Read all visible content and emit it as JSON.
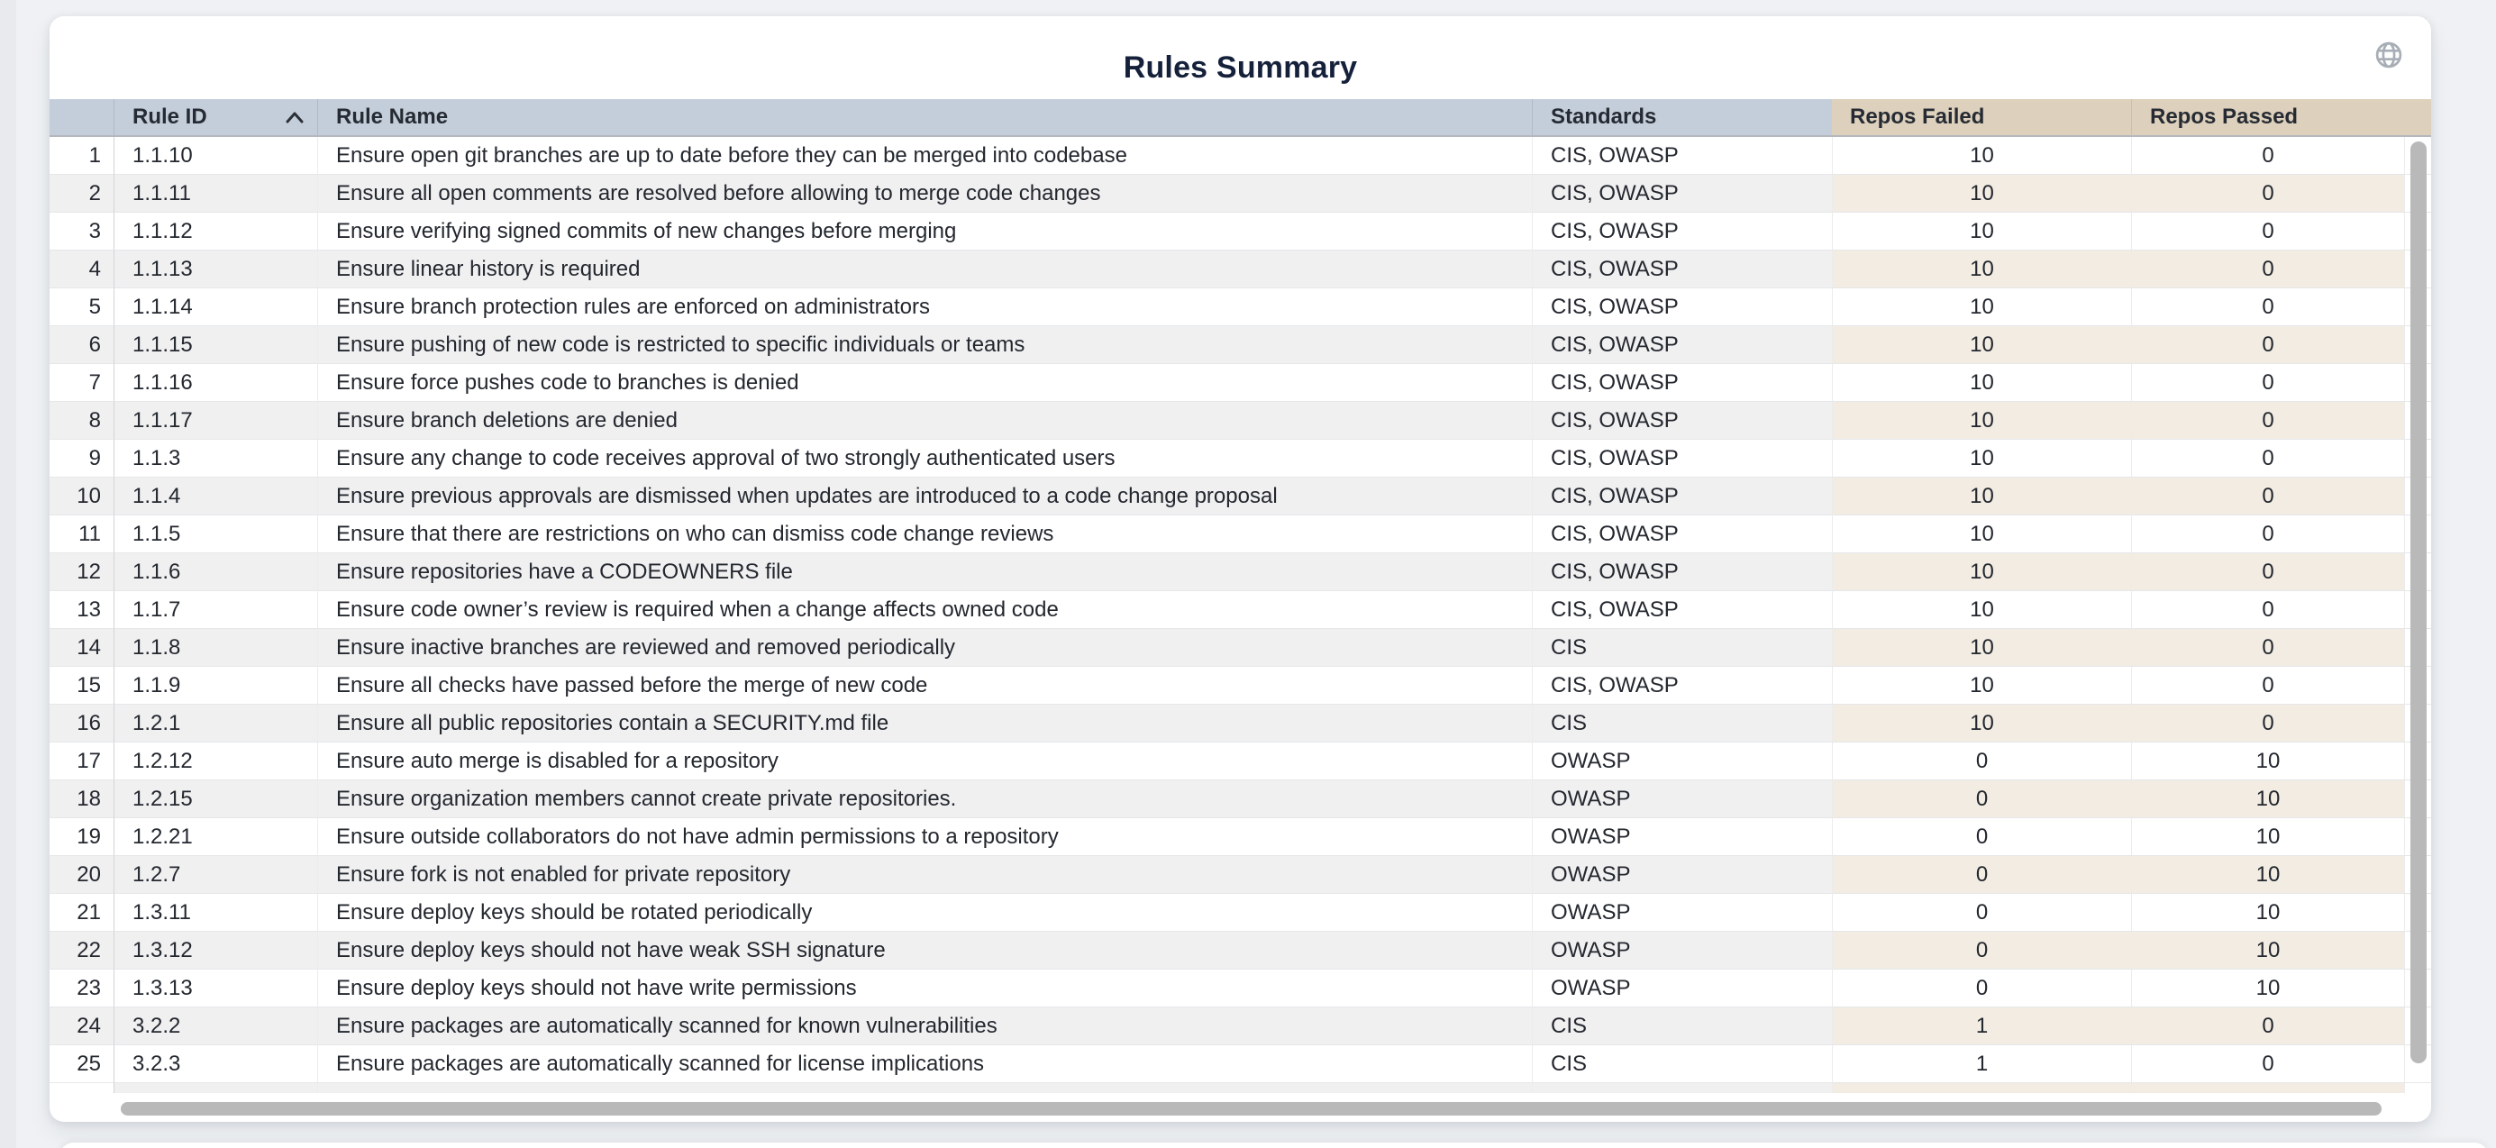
{
  "page": {
    "title": "Rules Summary"
  },
  "colors": {
    "page_background": "#eff1f4",
    "card_background": "#ffffff",
    "header_blue": "#c4cedb",
    "header_tan": "#ddd0bc",
    "row_alt_gray": "#f0f0f1",
    "row_alt_tan": "#f2ece3",
    "title_text": "#15213b",
    "body_text": "#23272e",
    "scrollbar_thumb": "#b9b9b9",
    "globe_icon": "#a7aeb6"
  },
  "table": {
    "columns": {
      "row_num": "",
      "rule_id": "Rule ID",
      "rule_name": "Rule Name",
      "standards": "Standards",
      "repos_failed": "Repos Failed",
      "repos_passed": "Repos Passed"
    },
    "sort": {
      "column": "Rule ID",
      "direction": "ascending"
    },
    "rows": [
      {
        "n": 1,
        "rule_id": "1.1.10",
        "rule_name": "Ensure open git branches are up to date before they can be merged into codebase",
        "standards": "CIS, OWASP",
        "repos_failed": 10,
        "repos_passed": 0
      },
      {
        "n": 2,
        "rule_id": "1.1.11",
        "rule_name": "Ensure all open comments are resolved before allowing to merge code changes",
        "standards": "CIS, OWASP",
        "repos_failed": 10,
        "repos_passed": 0
      },
      {
        "n": 3,
        "rule_id": "1.1.12",
        "rule_name": "Ensure verifying signed commits of new changes before merging",
        "standards": "CIS, OWASP",
        "repos_failed": 10,
        "repos_passed": 0
      },
      {
        "n": 4,
        "rule_id": "1.1.13",
        "rule_name": "Ensure linear history is required",
        "standards": "CIS, OWASP",
        "repos_failed": 10,
        "repos_passed": 0
      },
      {
        "n": 5,
        "rule_id": "1.1.14",
        "rule_name": "Ensure branch protection rules are enforced on administrators",
        "standards": "CIS, OWASP",
        "repos_failed": 10,
        "repos_passed": 0
      },
      {
        "n": 6,
        "rule_id": "1.1.15",
        "rule_name": "Ensure pushing of new code is restricted to specific individuals or teams",
        "standards": "CIS, OWASP",
        "repos_failed": 10,
        "repos_passed": 0
      },
      {
        "n": 7,
        "rule_id": "1.1.16",
        "rule_name": "Ensure force pushes code to branches is denied",
        "standards": "CIS, OWASP",
        "repos_failed": 10,
        "repos_passed": 0
      },
      {
        "n": 8,
        "rule_id": "1.1.17",
        "rule_name": "Ensure branch deletions are denied",
        "standards": "CIS, OWASP",
        "repos_failed": 10,
        "repos_passed": 0
      },
      {
        "n": 9,
        "rule_id": "1.1.3",
        "rule_name": "Ensure any change to code receives approval of two strongly authenticated users",
        "standards": "CIS, OWASP",
        "repos_failed": 10,
        "repos_passed": 0
      },
      {
        "n": 10,
        "rule_id": "1.1.4",
        "rule_name": "Ensure previous approvals are dismissed when updates are introduced to a code change proposal",
        "standards": "CIS, OWASP",
        "repos_failed": 10,
        "repos_passed": 0
      },
      {
        "n": 11,
        "rule_id": "1.1.5",
        "rule_name": "Ensure that there are restrictions on who can dismiss code change reviews",
        "standards": "CIS, OWASP",
        "repos_failed": 10,
        "repos_passed": 0
      },
      {
        "n": 12,
        "rule_id": "1.1.6",
        "rule_name": "Ensure repositories have a CODEOWNERS file",
        "standards": "CIS, OWASP",
        "repos_failed": 10,
        "repos_passed": 0
      },
      {
        "n": 13,
        "rule_id": "1.1.7",
        "rule_name": "Ensure code owner’s review is required when a change affects owned code",
        "standards": "CIS, OWASP",
        "repos_failed": 10,
        "repos_passed": 0
      },
      {
        "n": 14,
        "rule_id": "1.1.8",
        "rule_name": "Ensure inactive branches are reviewed and removed periodically",
        "standards": "CIS",
        "repos_failed": 10,
        "repos_passed": 0
      },
      {
        "n": 15,
        "rule_id": "1.1.9",
        "rule_name": "Ensure all checks have passed before the merge of new code",
        "standards": "CIS, OWASP",
        "repos_failed": 10,
        "repos_passed": 0
      },
      {
        "n": 16,
        "rule_id": "1.2.1",
        "rule_name": "Ensure all public repositories contain a SECURITY.md file",
        "standards": "CIS",
        "repos_failed": 10,
        "repos_passed": 0
      },
      {
        "n": 17,
        "rule_id": "1.2.12",
        "rule_name": "Ensure auto merge is disabled for a repository",
        "standards": "OWASP",
        "repos_failed": 0,
        "repos_passed": 10
      },
      {
        "n": 18,
        "rule_id": "1.2.15",
        "rule_name": "Ensure organization members cannot create private repositories.",
        "standards": "OWASP",
        "repos_failed": 0,
        "repos_passed": 10
      },
      {
        "n": 19,
        "rule_id": "1.2.21",
        "rule_name": "Ensure outside collaborators do not have admin permissions to a repository",
        "standards": "OWASP",
        "repos_failed": 0,
        "repos_passed": 10
      },
      {
        "n": 20,
        "rule_id": "1.2.7",
        "rule_name": "Ensure fork is not enabled for private repository",
        "standards": "OWASP",
        "repos_failed": 0,
        "repos_passed": 10
      },
      {
        "n": 21,
        "rule_id": "1.3.11",
        "rule_name": "Ensure deploy keys should be rotated periodically",
        "standards": "OWASP",
        "repos_failed": 0,
        "repos_passed": 10
      },
      {
        "n": 22,
        "rule_id": "1.3.12",
        "rule_name": "Ensure deploy keys should not have weak SSH signature",
        "standards": "OWASP",
        "repos_failed": 0,
        "repos_passed": 10
      },
      {
        "n": 23,
        "rule_id": "1.3.13",
        "rule_name": "Ensure deploy keys should not have write permissions",
        "standards": "OWASP",
        "repos_failed": 0,
        "repos_passed": 10
      },
      {
        "n": 24,
        "rule_id": "3.2.2",
        "rule_name": "Ensure packages are automatically scanned for known vulnerabilities",
        "standards": "CIS",
        "repos_failed": 1,
        "repos_passed": 0
      },
      {
        "n": 25,
        "rule_id": "3.2.3",
        "rule_name": "Ensure packages are automatically scanned for license implications",
        "standards": "CIS",
        "repos_failed": 1,
        "repos_passed": 0
      }
    ]
  }
}
